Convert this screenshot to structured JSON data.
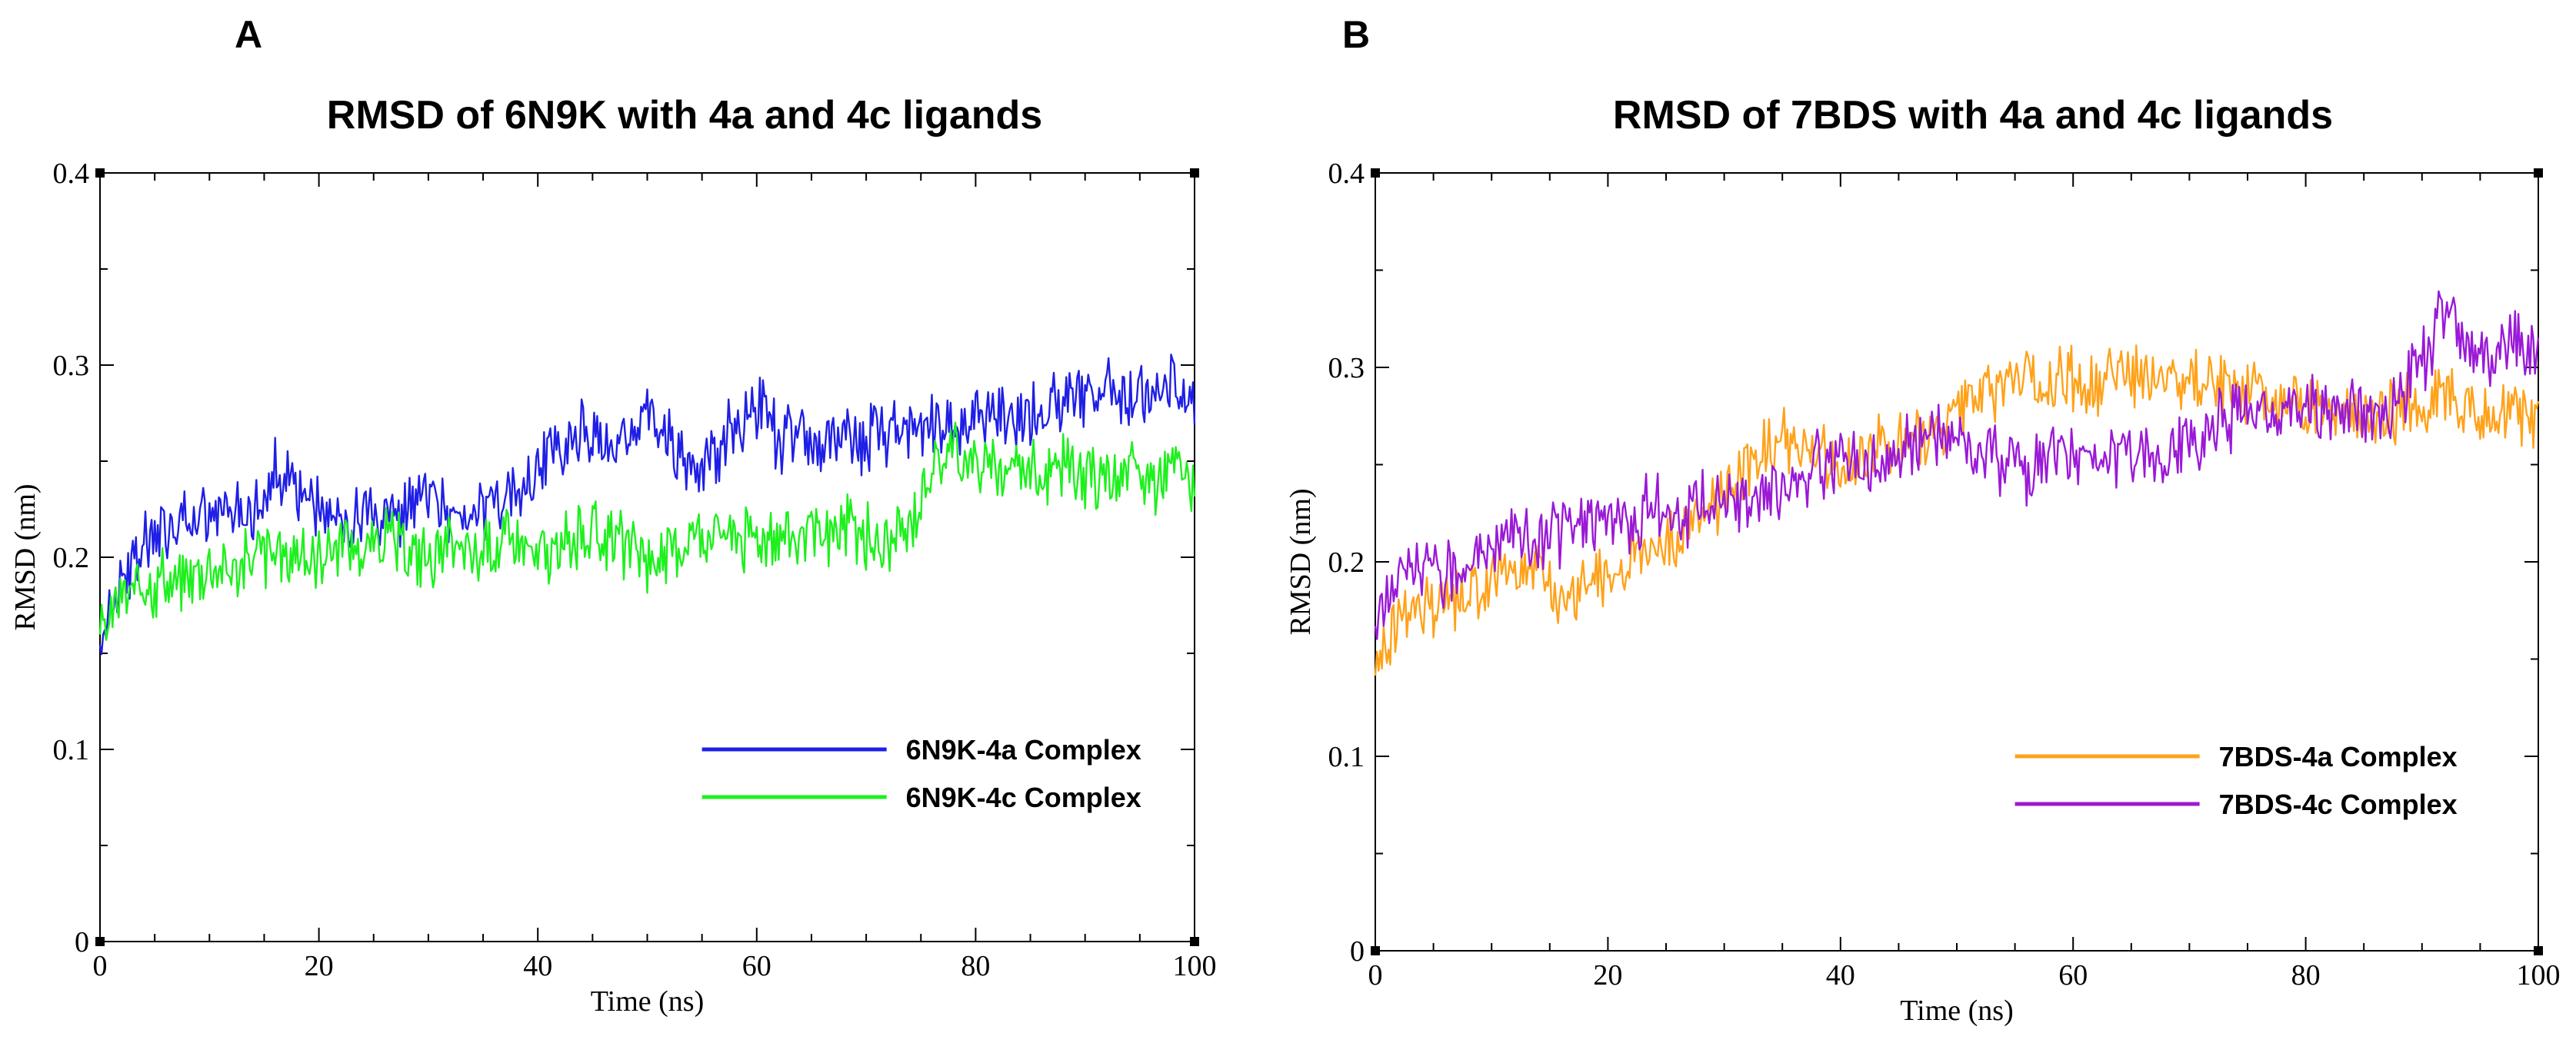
{
  "chart_data": [
    {
      "panel": "A",
      "type": "line",
      "title": "RMSD of 6N9K with 4a and 4c ligands",
      "xlabel": "Time (ns)",
      "ylabel": "RMSD (nm)",
      "xlim": [
        0,
        100
      ],
      "ylim": [
        0,
        0.4
      ],
      "xticks": [
        0,
        20,
        40,
        60,
        80,
        100
      ],
      "yticks": [
        0,
        0.1,
        0.2,
        0.3,
        0.4
      ],
      "xtick_labels": [
        "0",
        "20",
        "40",
        "60",
        "80",
        "100"
      ],
      "ytick_labels": [
        "0",
        "0.1",
        "0.2",
        "0.3",
        "0.4"
      ],
      "legend_position": "bottom-right",
      "series": [
        {
          "name": "6N9K-4a Complex",
          "color": "#1f1fe6",
          "x": [
            0,
            2,
            4,
            6,
            8,
            10,
            12,
            14,
            16,
            18,
            20,
            22,
            24,
            26,
            28,
            30,
            32,
            34,
            36,
            38,
            40,
            42,
            44,
            46,
            48,
            50,
            52,
            54,
            56,
            58,
            60,
            62,
            64,
            66,
            68,
            70,
            72,
            74,
            76,
            78,
            80,
            82,
            84,
            86,
            88,
            90,
            92,
            94,
            96,
            98,
            100
          ],
          "values": [
            0.16,
            0.19,
            0.205,
            0.215,
            0.215,
            0.22,
            0.225,
            0.225,
            0.245,
            0.235,
            0.225,
            0.215,
            0.22,
            0.215,
            0.225,
            0.23,
            0.22,
            0.23,
            0.225,
            0.23,
            0.245,
            0.26,
            0.265,
            0.255,
            0.265,
            0.275,
            0.26,
            0.245,
            0.25,
            0.27,
            0.28,
            0.26,
            0.265,
            0.255,
            0.265,
            0.26,
            0.265,
            0.27,
            0.265,
            0.27,
            0.275,
            0.275,
            0.27,
            0.28,
            0.28,
            0.285,
            0.29,
            0.285,
            0.28,
            0.29,
            0.285
          ]
        },
        {
          "name": "6N9K-4c Complex",
          "color": "#1ef01e",
          "x": [
            0,
            2,
            4,
            6,
            8,
            10,
            12,
            14,
            16,
            18,
            20,
            22,
            24,
            26,
            28,
            30,
            32,
            34,
            36,
            38,
            40,
            42,
            44,
            46,
            48,
            50,
            52,
            54,
            56,
            58,
            60,
            62,
            64,
            66,
            68,
            70,
            72,
            74,
            76,
            78,
            80,
            82,
            84,
            86,
            88,
            90,
            92,
            94,
            96,
            98,
            100
          ],
          "values": [
            0.16,
            0.18,
            0.185,
            0.19,
            0.19,
            0.195,
            0.195,
            0.2,
            0.2,
            0.2,
            0.2,
            0.21,
            0.205,
            0.21,
            0.205,
            0.2,
            0.205,
            0.2,
            0.205,
            0.21,
            0.2,
            0.205,
            0.215,
            0.21,
            0.205,
            0.2,
            0.2,
            0.21,
            0.215,
            0.21,
            0.21,
            0.215,
            0.205,
            0.21,
            0.215,
            0.21,
            0.205,
            0.215,
            0.25,
            0.255,
            0.25,
            0.245,
            0.25,
            0.245,
            0.245,
            0.24,
            0.24,
            0.245,
            0.24,
            0.245,
            0.24
          ]
        }
      ]
    },
    {
      "panel": "B",
      "type": "line",
      "title": "RMSD of 7BDS with 4a and 4c ligands",
      "xlabel": "Time (ns)",
      "ylabel": "RMSD (nm)",
      "xlim": [
        0,
        100
      ],
      "ylim": [
        0,
        0.4
      ],
      "xticks": [
        0,
        20,
        40,
        60,
        80,
        100
      ],
      "yticks": [
        0,
        0.1,
        0.2,
        0.3,
        0.4
      ],
      "xtick_labels": [
        "0",
        "20",
        "40",
        "60",
        "80",
        "100"
      ],
      "ytick_labels": [
        "0",
        "0.1",
        "0.2",
        "0.3",
        "0.4"
      ],
      "legend_position": "bottom-right",
      "series": [
        {
          "name": "7BDS-4a Complex",
          "color": "#ffa21a",
          "x": [
            0,
            2,
            4,
            6,
            8,
            10,
            12,
            14,
            16,
            18,
            20,
            22,
            24,
            26,
            28,
            30,
            32,
            34,
            36,
            38,
            40,
            42,
            44,
            46,
            48,
            50,
            52,
            54,
            56,
            58,
            60,
            62,
            64,
            66,
            68,
            70,
            72,
            74,
            76,
            78,
            80,
            82,
            84,
            86,
            88,
            90,
            92,
            94,
            96,
            98,
            100
          ],
          "values": [
            0.15,
            0.17,
            0.175,
            0.18,
            0.185,
            0.19,
            0.195,
            0.195,
            0.18,
            0.19,
            0.195,
            0.205,
            0.21,
            0.215,
            0.225,
            0.235,
            0.25,
            0.265,
            0.26,
            0.255,
            0.25,
            0.255,
            0.26,
            0.26,
            0.265,
            0.275,
            0.285,
            0.29,
            0.295,
            0.29,
            0.295,
            0.29,
            0.3,
            0.295,
            0.3,
            0.29,
            0.295,
            0.29,
            0.285,
            0.28,
            0.285,
            0.28,
            0.275,
            0.275,
            0.28,
            0.28,
            0.285,
            0.28,
            0.275,
            0.28,
            0.275
          ]
        },
        {
          "name": "7BDS-4c Complex",
          "color": "#9a1ad6",
          "x": [
            0,
            2,
            4,
            6,
            8,
            10,
            12,
            14,
            16,
            18,
            20,
            22,
            24,
            26,
            28,
            30,
            32,
            34,
            36,
            38,
            40,
            42,
            44,
            46,
            48,
            50,
            52,
            54,
            56,
            58,
            60,
            62,
            64,
            66,
            68,
            70,
            72,
            74,
            76,
            78,
            80,
            82,
            84,
            86,
            88,
            90,
            92,
            94,
            96,
            98,
            100
          ],
          "values": [
            0.17,
            0.19,
            0.2,
            0.195,
            0.2,
            0.21,
            0.215,
            0.21,
            0.215,
            0.22,
            0.225,
            0.22,
            0.23,
            0.225,
            0.23,
            0.235,
            0.23,
            0.235,
            0.24,
            0.25,
            0.255,
            0.25,
            0.255,
            0.26,
            0.265,
            0.26,
            0.255,
            0.25,
            0.245,
            0.255,
            0.25,
            0.26,
            0.255,
            0.25,
            0.255,
            0.26,
            0.27,
            0.275,
            0.28,
            0.275,
            0.28,
            0.275,
            0.28,
            0.275,
            0.285,
            0.3,
            0.33,
            0.31,
            0.3,
            0.32,
            0.3
          ]
        }
      ]
    }
  ]
}
